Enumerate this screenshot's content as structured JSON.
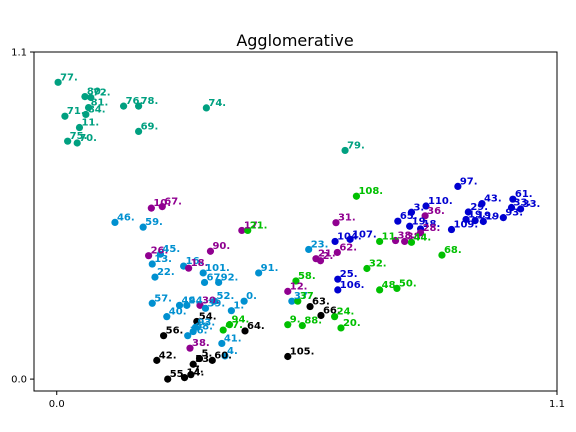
{
  "chart_data": {
    "type": "scatter",
    "title": "Agglomerative",
    "xlabel": "",
    "ylabel": "",
    "xlim": [
      -0.05,
      1.1
    ],
    "ylim": [
      -0.04,
      1.1
    ],
    "x_ticks": [
      {
        "v": 0.0,
        "label": "0.0"
      },
      {
        "v": 1.1,
        "label": "1.1"
      }
    ],
    "y_ticks": [
      {
        "v": 0.0,
        "label": "0.0"
      },
      {
        "v": 1.1,
        "label": "1.1"
      }
    ],
    "grid": false,
    "legend": "none",
    "cluster_colors": {
      "teal": "#00a080",
      "purple": "#900090",
      "blue": "#0000d0",
      "cyan": "#0090d0",
      "green": "#00c000",
      "black": "#000000"
    },
    "points": [
      {
        "label": "77.",
        "x": 0.003,
        "y": 0.998,
        "cluster": "teal"
      },
      {
        "label": "80.",
        "x": 0.062,
        "y": 0.95,
        "cluster": "teal"
      },
      {
        "label": "72.",
        "x": 0.075,
        "y": 0.947,
        "cluster": "teal"
      },
      {
        "label": "81.",
        "x": 0.07,
        "y": 0.913,
        "cluster": "teal"
      },
      {
        "label": "71.",
        "x": 0.018,
        "y": 0.884,
        "cluster": "teal"
      },
      {
        "label": "84.",
        "x": 0.064,
        "y": 0.89,
        "cluster": "teal"
      },
      {
        "label": "76.",
        "x": 0.147,
        "y": 0.918,
        "cluster": "teal"
      },
      {
        "label": "78.",
        "x": 0.18,
        "y": 0.918,
        "cluster": "teal"
      },
      {
        "label": "74.",
        "x": 0.329,
        "y": 0.912,
        "cluster": "teal"
      },
      {
        "label": "11.",
        "x": 0.05,
        "y": 0.846,
        "cluster": "teal"
      },
      {
        "label": "69.",
        "x": 0.18,
        "y": 0.833,
        "cluster": "teal"
      },
      {
        "label": "75.",
        "x": 0.024,
        "y": 0.8,
        "cluster": "teal"
      },
      {
        "label": "70.",
        "x": 0.045,
        "y": 0.794,
        "cluster": "teal"
      },
      {
        "label": "79.",
        "x": 0.634,
        "y": 0.769,
        "cluster": "teal"
      },
      {
        "label": "108.",
        "x": 0.659,
        "y": 0.615,
        "cluster": "green"
      },
      {
        "label": "97.",
        "x": 0.882,
        "y": 0.648,
        "cluster": "blue"
      },
      {
        "label": "61.",
        "x": 1.003,
        "y": 0.605,
        "cluster": "blue"
      },
      {
        "label": "43.",
        "x": 0.935,
        "y": 0.59,
        "cluster": "blue"
      },
      {
        "label": "110.",
        "x": 0.812,
        "y": 0.582,
        "cluster": "blue"
      },
      {
        "label": "33.",
        "x": 1.0,
        "y": 0.577,
        "cluster": "blue"
      },
      {
        "label": "33.",
        "x": 1.02,
        "y": 0.572,
        "cluster": "blue"
      },
      {
        "label": "3.",
        "x": 0.78,
        "y": 0.561,
        "cluster": "blue"
      },
      {
        "label": "29.",
        "x": 0.905,
        "y": 0.562,
        "cluster": "blue"
      },
      {
        "label": "36.",
        "x": 0.81,
        "y": 0.549,
        "cluster": "purple"
      },
      {
        "label": "93.",
        "x": 0.982,
        "y": 0.543,
        "cluster": "blue"
      },
      {
        "label": "65.",
        "x": 0.75,
        "y": 0.531,
        "cluster": "blue"
      },
      {
        "label": "19.",
        "x": 0.9,
        "y": 0.537,
        "cluster": "blue"
      },
      {
        "label": "19.",
        "x": 0.92,
        "y": 0.533,
        "cluster": "blue"
      },
      {
        "label": "19.",
        "x": 0.938,
        "y": 0.53,
        "cluster": "blue"
      },
      {
        "label": "19.",
        "x": 0.776,
        "y": 0.514,
        "cluster": "blue"
      },
      {
        "label": "109.",
        "x": 0.868,
        "y": 0.503,
        "cluster": "blue"
      },
      {
        "label": "18.",
        "x": 0.8,
        "y": 0.505,
        "cluster": "blue"
      },
      {
        "label": "28.",
        "x": 0.8,
        "y": 0.492,
        "cluster": "purple"
      },
      {
        "label": "31.",
        "x": 0.614,
        "y": 0.526,
        "cluster": "purple"
      },
      {
        "label": "11.",
        "x": 0.71,
        "y": 0.463,
        "cluster": "green"
      },
      {
        "label": "38.",
        "x": 0.745,
        "y": 0.466,
        "cluster": "purple"
      },
      {
        "label": "38.",
        "x": 0.765,
        "y": 0.463,
        "cluster": "purple"
      },
      {
        "label": "44.",
        "x": 0.78,
        "y": 0.46,
        "cluster": "green"
      },
      {
        "label": "68.",
        "x": 0.847,
        "y": 0.417,
        "cluster": "green"
      },
      {
        "label": "104.",
        "x": 0.612,
        "y": 0.463,
        "cluster": "blue"
      },
      {
        "label": "107.",
        "x": 0.645,
        "y": 0.47,
        "cluster": "blue"
      },
      {
        "label": "23.",
        "x": 0.554,
        "y": 0.436,
        "cluster": "cyan"
      },
      {
        "label": "62.",
        "x": 0.617,
        "y": 0.426,
        "cluster": "purple"
      },
      {
        "label": "21.",
        "x": 0.57,
        "y": 0.405,
        "cluster": "purple"
      },
      {
        "label": "2.",
        "x": 0.58,
        "y": 0.398,
        "cluster": "purple"
      },
      {
        "label": "32.",
        "x": 0.682,
        "y": 0.372,
        "cluster": "green"
      },
      {
        "label": "25.",
        "x": 0.618,
        "y": 0.336,
        "cluster": "blue"
      },
      {
        "label": "106.",
        "x": 0.618,
        "y": 0.3,
        "cluster": "blue"
      },
      {
        "label": "48.",
        "x": 0.71,
        "y": 0.3,
        "cluster": "green"
      },
      {
        "label": "50.",
        "x": 0.748,
        "y": 0.305,
        "cluster": "green"
      },
      {
        "label": "58.",
        "x": 0.526,
        "y": 0.33,
        "cluster": "green"
      },
      {
        "label": "12.",
        "x": 0.508,
        "y": 0.295,
        "cluster": "purple"
      },
      {
        "label": "37.",
        "x": 0.517,
        "y": 0.262,
        "cluster": "cyan"
      },
      {
        "label": "37.",
        "x": 0.53,
        "y": 0.262,
        "cluster": "green"
      },
      {
        "label": "63.",
        "x": 0.557,
        "y": 0.244,
        "cluster": "black"
      },
      {
        "label": "66.",
        "x": 0.581,
        "y": 0.214,
        "cluster": "black"
      },
      {
        "label": "24.",
        "x": 0.611,
        "y": 0.21,
        "cluster": "green"
      },
      {
        "label": "9.",
        "x": 0.508,
        "y": 0.183,
        "cluster": "green"
      },
      {
        "label": "88.",
        "x": 0.54,
        "y": 0.18,
        "cluster": "green"
      },
      {
        "label": "20.",
        "x": 0.625,
        "y": 0.172,
        "cluster": "green"
      },
      {
        "label": "105.",
        "x": 0.508,
        "y": 0.076,
        "cluster": "black"
      },
      {
        "label": "46.",
        "x": 0.128,
        "y": 0.527,
        "cluster": "cyan"
      },
      {
        "label": "59.",
        "x": 0.19,
        "y": 0.511,
        "cluster": "cyan"
      },
      {
        "label": "10.",
        "x": 0.208,
        "y": 0.575,
        "cluster": "purple"
      },
      {
        "label": "67.",
        "x": 0.232,
        "y": 0.58,
        "cluster": "purple"
      },
      {
        "label": "17.",
        "x": 0.407,
        "y": 0.5,
        "cluster": "purple"
      },
      {
        "label": "21.",
        "x": 0.42,
        "y": 0.5,
        "cluster": "green"
      },
      {
        "label": "26.",
        "x": 0.202,
        "y": 0.415,
        "cluster": "purple"
      },
      {
        "label": "45.",
        "x": 0.228,
        "y": 0.42,
        "cluster": "cyan"
      },
      {
        "label": "90.",
        "x": 0.338,
        "y": 0.43,
        "cluster": "purple"
      },
      {
        "label": "13.",
        "x": 0.21,
        "y": 0.387,
        "cluster": "cyan"
      },
      {
        "label": "16.",
        "x": 0.279,
        "y": 0.38,
        "cluster": "cyan"
      },
      {
        "label": "18.",
        "x": 0.29,
        "y": 0.373,
        "cluster": "purple"
      },
      {
        "label": "101.",
        "x": 0.322,
        "y": 0.357,
        "cluster": "cyan"
      },
      {
        "label": "91.",
        "x": 0.444,
        "y": 0.357,
        "cluster": "cyan"
      },
      {
        "label": "22.",
        "x": 0.216,
        "y": 0.343,
        "cluster": "cyan"
      },
      {
        "label": "67.",
        "x": 0.325,
        "y": 0.325,
        "cluster": "cyan"
      },
      {
        "label": "92.",
        "x": 0.356,
        "y": 0.325,
        "cluster": "cyan"
      },
      {
        "label": "57.",
        "x": 0.21,
        "y": 0.255,
        "cluster": "cyan"
      },
      {
        "label": "49.",
        "x": 0.27,
        "y": 0.248,
        "cluster": "cyan"
      },
      {
        "label": "44.",
        "x": 0.286,
        "y": 0.248,
        "cluster": "cyan"
      },
      {
        "label": "30.",
        "x": 0.315,
        "y": 0.248,
        "cluster": "purple"
      },
      {
        "label": "52.",
        "x": 0.347,
        "y": 0.262,
        "cluster": "cyan"
      },
      {
        "label": "0.",
        "x": 0.412,
        "y": 0.262,
        "cluster": "cyan"
      },
      {
        "label": "39.",
        "x": 0.327,
        "y": 0.238,
        "cluster": "cyan"
      },
      {
        "label": "1.",
        "x": 0.384,
        "y": 0.23,
        "cluster": "cyan"
      },
      {
        "label": "40.",
        "x": 0.242,
        "y": 0.21,
        "cluster": "cyan"
      },
      {
        "label": "54.",
        "x": 0.308,
        "y": 0.194,
        "cluster": "black"
      },
      {
        "label": "94.",
        "x": 0.38,
        "y": 0.183,
        "cluster": "green"
      },
      {
        "label": "93.",
        "x": 0.305,
        "y": 0.174,
        "cluster": "cyan"
      },
      {
        "label": "98.",
        "x": 0.3,
        "y": 0.16,
        "cluster": "cyan"
      },
      {
        "label": "47.",
        "x": 0.366,
        "y": 0.165,
        "cluster": "green"
      },
      {
        "label": "64.",
        "x": 0.414,
        "y": 0.162,
        "cluster": "black"
      },
      {
        "label": "56.",
        "x": 0.235,
        "y": 0.146,
        "cluster": "black"
      },
      {
        "label": "36.",
        "x": 0.288,
        "y": 0.146,
        "cluster": "cyan"
      },
      {
        "label": "41.",
        "x": 0.363,
        "y": 0.12,
        "cluster": "cyan"
      },
      {
        "label": "38.",
        "x": 0.293,
        "y": 0.104,
        "cluster": "purple"
      },
      {
        "label": "4.",
        "x": 0.37,
        "y": 0.078,
        "cluster": "cyan"
      },
      {
        "label": "42.",
        "x": 0.22,
        "y": 0.063,
        "cluster": "black"
      },
      {
        "label": "5.",
        "x": 0.314,
        "y": 0.069,
        "cluster": "black"
      },
      {
        "label": "60.",
        "x": 0.342,
        "y": 0.063,
        "cluster": "black"
      },
      {
        "label": "53.",
        "x": 0.3,
        "y": 0.05,
        "cluster": "black"
      },
      {
        "label": "55.",
        "x": 0.244,
        "y": 0.0,
        "cluster": "black"
      },
      {
        "label": "14.",
        "x": 0.281,
        "y": 0.005,
        "cluster": "black"
      },
      {
        "label": "7.",
        "x": 0.295,
        "y": 0.015,
        "cluster": "black"
      }
    ]
  }
}
